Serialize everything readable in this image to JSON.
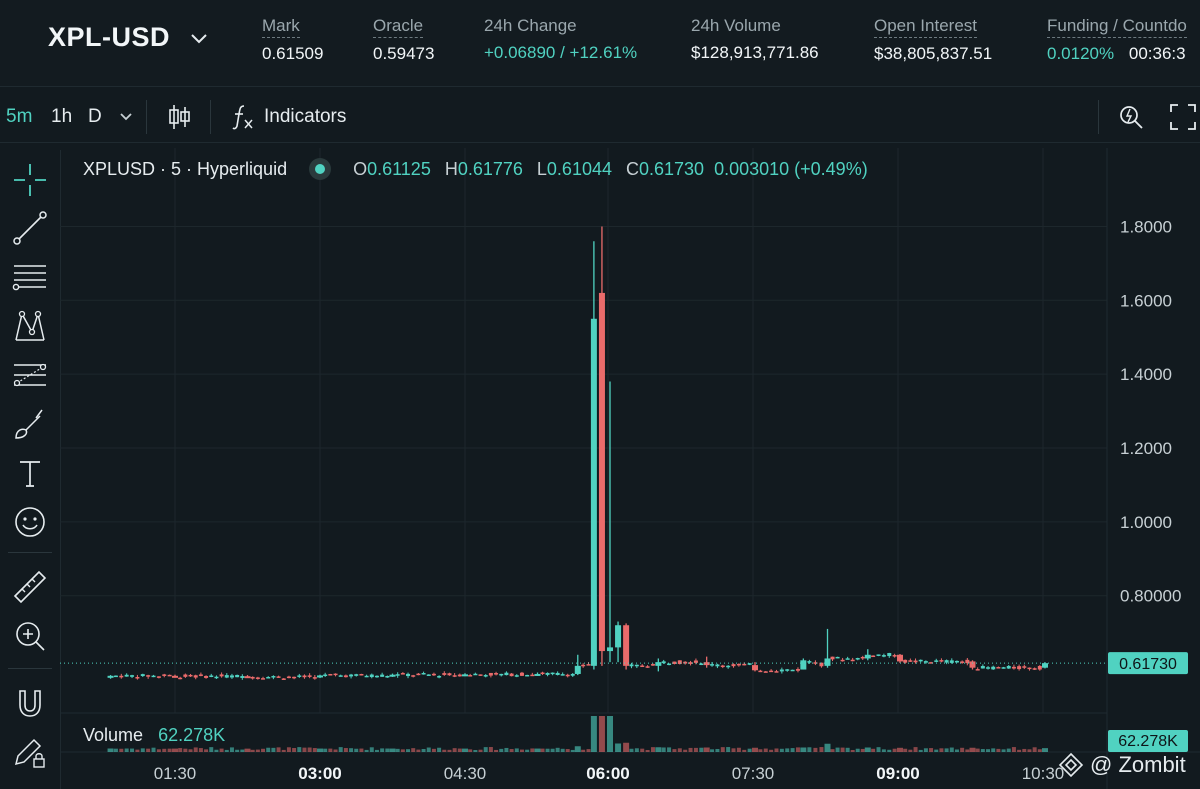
{
  "header": {
    "symbol": "XPL-USD",
    "stats": [
      {
        "label": "Mark",
        "value": "0.61509"
      },
      {
        "label": "Oracle",
        "value": "0.59473"
      },
      {
        "label": "24h Change",
        "value": "+0.06890 / +12.61%"
      },
      {
        "label": "24h Volume",
        "value": "$128,913,771.86"
      },
      {
        "label": "Open Interest",
        "value": "$38,805,837.51"
      },
      {
        "label": "Funding / Countdo",
        "value": "0.0120%",
        "value2": "00:36:3"
      }
    ]
  },
  "toolbar": {
    "intervals": [
      "5m",
      "1h",
      "D"
    ],
    "indicators_label": "Indicators"
  },
  "left_tools": [
    "crosshair-icon",
    "trend-line-icon",
    "horizontal-lines-icon",
    "pattern-icon",
    "fib-icon",
    "brush-icon",
    "text-icon",
    "emoji-icon",
    "ruler-icon",
    "zoom-in-icon",
    "magnet-icon",
    "lock-drawing-icon"
  ],
  "legend": {
    "title": "XPLUSD · 5 · Hyperliquid",
    "o_label": "O",
    "o": "0.61125",
    "h_label": "H",
    "h": "0.61776",
    "l_label": "L",
    "l": "0.61044",
    "c_label": "C",
    "c": "0.61730",
    "change": "0.003010 (+0.49%)"
  },
  "volume": {
    "label": "Volume",
    "value": "62.278K"
  },
  "colors": {
    "up": "#50d2c1",
    "down": "#ea6b6b",
    "bg": "#121a1f",
    "grid": "#1d272c"
  },
  "watermark": "@ Zombit",
  "chart_data": {
    "type": "candlestick",
    "y_ticks": [
      "1.8000",
      "1.6000",
      "1.4000",
      "1.2000",
      "1.0000",
      "0.80000"
    ],
    "ylim": [
      0.55,
      1.85
    ],
    "x_ticks": [
      "01:30",
      "03:00",
      "04:30",
      "06:00",
      "07:30",
      "09:00",
      "10:30"
    ],
    "x_ticks_bold": [
      false,
      true,
      false,
      true,
      false,
      true,
      false
    ],
    "last_price": "0.61730",
    "last_price_value": 0.6173,
    "volume_last": "62.278K",
    "series": [
      {
        "name": "price",
        "points": [
          {
            "t": "00:50",
            "o": 0.58,
            "h": 0.585,
            "l": 0.575,
            "c": 0.583
          },
          {
            "t": "01:30",
            "o": 0.583,
            "h": 0.586,
            "l": 0.578,
            "c": 0.582
          },
          {
            "t": "02:15",
            "o": 0.582,
            "h": 0.585,
            "l": 0.578,
            "c": 0.58
          },
          {
            "t": "03:00",
            "o": 0.58,
            "h": 0.586,
            "l": 0.577,
            "c": 0.584
          },
          {
            "t": "03:45",
            "o": 0.584,
            "h": 0.589,
            "l": 0.58,
            "c": 0.586
          },
          {
            "t": "04:30",
            "o": 0.586,
            "h": 0.59,
            "l": 0.582,
            "c": 0.587
          },
          {
            "t": "05:15",
            "o": 0.587,
            "h": 0.592,
            "l": 0.583,
            "c": 0.588
          },
          {
            "t": "05:40",
            "o": 0.588,
            "h": 0.64,
            "l": 0.585,
            "c": 0.61
          },
          {
            "t": "05:50",
            "o": 0.61,
            "h": 1.76,
            "l": 0.6,
            "c": 1.55
          },
          {
            "t": "05:55",
            "o": 1.62,
            "h": 1.8,
            "l": 0.61,
            "c": 0.65
          },
          {
            "t": "06:00",
            "o": 0.65,
            "h": 1.38,
            "l": 0.62,
            "c": 0.66
          },
          {
            "t": "06:05",
            "o": 0.66,
            "h": 0.73,
            "l": 0.62,
            "c": 0.72
          },
          {
            "t": "06:10",
            "o": 0.72,
            "h": 0.725,
            "l": 0.6,
            "c": 0.61
          },
          {
            "t": "06:30",
            "o": 0.61,
            "h": 0.63,
            "l": 0.595,
            "c": 0.62
          },
          {
            "t": "07:00",
            "o": 0.62,
            "h": 0.635,
            "l": 0.605,
            "c": 0.612
          },
          {
            "t": "07:30",
            "o": 0.612,
            "h": 0.62,
            "l": 0.595,
            "c": 0.598
          },
          {
            "t": "08:00",
            "o": 0.6,
            "h": 0.63,
            "l": 0.6,
            "c": 0.625
          },
          {
            "t": "08:15",
            "o": 0.61,
            "h": 0.71,
            "l": 0.605,
            "c": 0.63
          },
          {
            "t": "08:40",
            "o": 0.63,
            "h": 0.655,
            "l": 0.625,
            "c": 0.64
          },
          {
            "t": "09:00",
            "o": 0.64,
            "h": 0.642,
            "l": 0.618,
            "c": 0.622
          },
          {
            "t": "09:45",
            "o": 0.622,
            "h": 0.625,
            "l": 0.6,
            "c": 0.605
          },
          {
            "t": "10:30",
            "o": 0.605,
            "h": 0.62,
            "l": 0.603,
            "c": 0.6173
          }
        ]
      }
    ]
  }
}
